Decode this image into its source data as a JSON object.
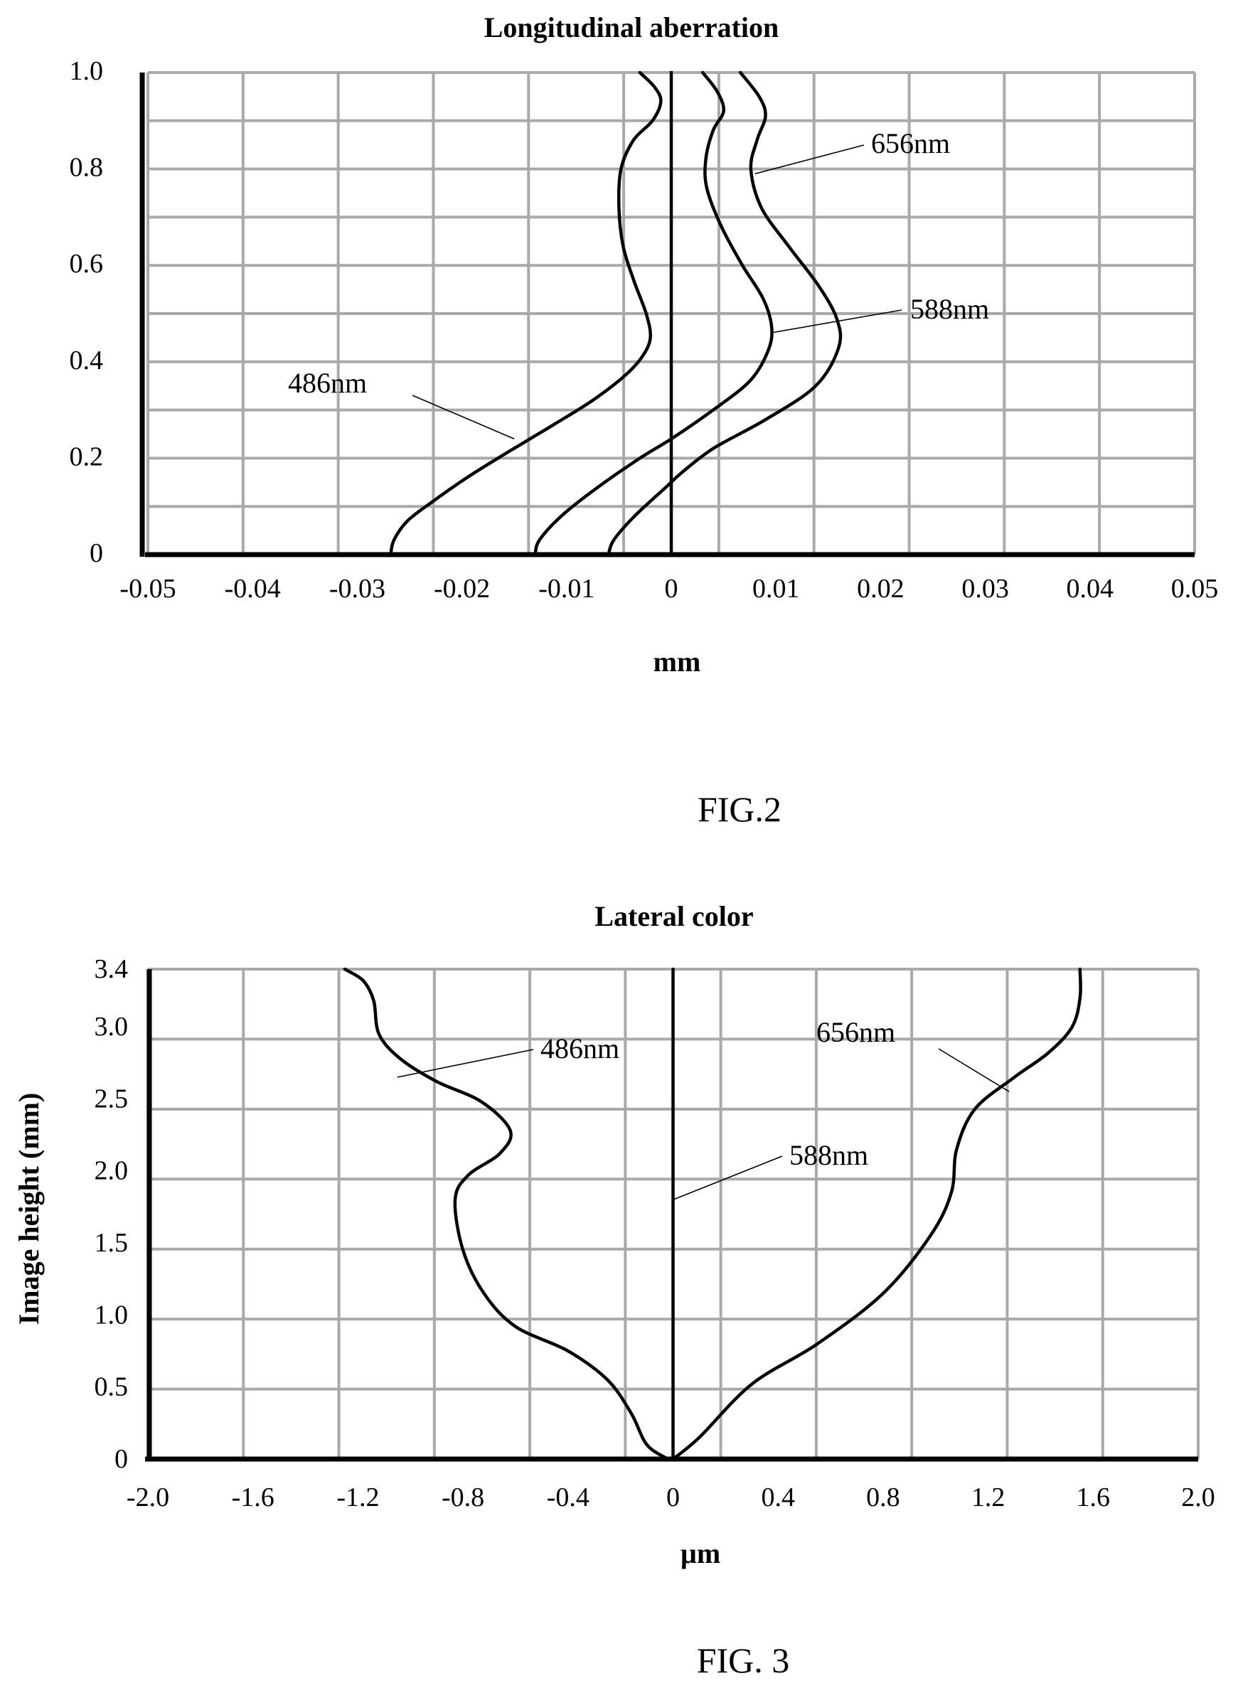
{
  "chart_data": [
    {
      "type": "line",
      "title": "Longitudinal aberration",
      "xlabel": "mm",
      "ylabel": "",
      "xlim": [
        -0.05,
        0.05
      ],
      "ylim": [
        0,
        1.0
      ],
      "x_ticks": [
        "-0.05",
        "-0.04",
        "-0.03",
        "-0.02",
        "-0.01",
        "0",
        "0.01",
        "0.02",
        "0.03",
        "0.04",
        "0.05"
      ],
      "y_ticks": [
        "0",
        "0.2",
        "0.4",
        "0.6",
        "0.8",
        "1.0"
      ],
      "grid": true,
      "caption": "FIG.2",
      "series": [
        {
          "name": "486nm",
          "points": [
            [
              -0.0268,
              0.0
            ],
            [
              -0.0265,
              0.03
            ],
            [
              -0.0252,
              0.07
            ],
            [
              -0.0228,
              0.11
            ],
            [
              -0.0195,
              0.16
            ],
            [
              -0.0158,
              0.21
            ],
            [
              -0.0112,
              0.27
            ],
            [
              -0.0075,
              0.32
            ],
            [
              -0.0045,
              0.37
            ],
            [
              -0.0028,
              0.41
            ],
            [
              -0.002,
              0.45
            ],
            [
              -0.0024,
              0.5
            ],
            [
              -0.0036,
              0.57
            ],
            [
              -0.0046,
              0.64
            ],
            [
              -0.005,
              0.72
            ],
            [
              -0.0048,
              0.8
            ],
            [
              -0.0036,
              0.86
            ],
            [
              -0.0018,
              0.9
            ],
            [
              -0.001,
              0.94
            ],
            [
              -0.0016,
              0.97
            ],
            [
              -0.003,
              1.0
            ]
          ]
        },
        {
          "name": "588nm",
          "points": [
            [
              -0.013,
              0.0
            ],
            [
              -0.0126,
              0.03
            ],
            [
              -0.0105,
              0.08
            ],
            [
              -0.007,
              0.14
            ],
            [
              -0.003,
              0.2
            ],
            [
              0.0,
              0.24
            ],
            [
              0.004,
              0.3
            ],
            [
              0.0075,
              0.36
            ],
            [
              0.0092,
              0.42
            ],
            [
              0.0096,
              0.47
            ],
            [
              0.0088,
              0.53
            ],
            [
              0.0068,
              0.6
            ],
            [
              0.0048,
              0.68
            ],
            [
              0.0034,
              0.76
            ],
            [
              0.0033,
              0.82
            ],
            [
              0.004,
              0.88
            ],
            [
              0.005,
              0.92
            ],
            [
              0.0044,
              0.96
            ],
            [
              0.003,
              1.0
            ]
          ]
        },
        {
          "name": "656nm",
          "points": [
            [
              -0.006,
              0.0
            ],
            [
              -0.0055,
              0.03
            ],
            [
              -0.0035,
              0.08
            ],
            [
              -0.0005,
              0.14
            ],
            [
              0.001,
              0.17
            ],
            [
              0.004,
              0.22
            ],
            [
              0.009,
              0.28
            ],
            [
              0.0138,
              0.35
            ],
            [
              0.016,
              0.43
            ],
            [
              0.0158,
              0.49
            ],
            [
              0.014,
              0.56
            ],
            [
              0.0112,
              0.64
            ],
            [
              0.0086,
              0.72
            ],
            [
              0.0076,
              0.8
            ],
            [
              0.0082,
              0.86
            ],
            [
              0.009,
              0.91
            ],
            [
              0.0084,
              0.95
            ],
            [
              0.0066,
              1.0
            ]
          ]
        }
      ],
      "annotations": [
        {
          "text": "656nm",
          "target": [
            0.008,
            0.79
          ]
        },
        {
          "text": "588nm",
          "target": [
            0.0095,
            0.46
          ]
        },
        {
          "text": "486nm",
          "target": [
            -0.015,
            0.24
          ]
        }
      ]
    },
    {
      "type": "line",
      "title": "Lateral color",
      "xlabel": "µm",
      "ylabel": "Image height (mm)",
      "xlim": [
        -2.0,
        2.0
      ],
      "ylim": [
        0,
        3.4
      ],
      "x_ticks": [
        "-2.0",
        "-1.6",
        "-1.2",
        "-0.8",
        "-0.4",
        "0",
        "0.4",
        "0.8",
        "1.2",
        "1.6",
        "2.0"
      ],
      "y_ticks": [
        "0",
        "0.5",
        "1.0",
        "1.5",
        "2.0",
        "2.5",
        "3.0",
        "3.4"
      ],
      "grid": true,
      "caption": "FIG. 3",
      "series": [
        {
          "name": "486nm",
          "points": [
            [
              -0.02,
              0.0
            ],
            [
              -0.1,
              0.1
            ],
            [
              -0.16,
              0.32
            ],
            [
              -0.25,
              0.55
            ],
            [
              -0.4,
              0.75
            ],
            [
              -0.6,
              0.92
            ],
            [
              -0.72,
              1.15
            ],
            [
              -0.8,
              1.45
            ],
            [
              -0.83,
              1.8
            ],
            [
              -0.78,
              1.97
            ],
            [
              -0.66,
              2.12
            ],
            [
              -0.62,
              2.28
            ],
            [
              -0.73,
              2.48
            ],
            [
              -0.9,
              2.62
            ],
            [
              -1.04,
              2.78
            ],
            [
              -1.12,
              2.95
            ],
            [
              -1.14,
              3.18
            ],
            [
              -1.18,
              3.32
            ],
            [
              -1.25,
              3.4
            ]
          ]
        },
        {
          "name": "588nm",
          "points": [
            [
              0.0,
              0.0
            ],
            [
              0.0,
              3.4
            ]
          ]
        },
        {
          "name": "656nm",
          "points": [
            [
              0.0,
              0.0
            ],
            [
              0.1,
              0.15
            ],
            [
              0.3,
              0.52
            ],
            [
              0.55,
              0.8
            ],
            [
              0.8,
              1.15
            ],
            [
              0.98,
              1.55
            ],
            [
              1.06,
              1.85
            ],
            [
              1.08,
              2.15
            ],
            [
              1.15,
              2.43
            ],
            [
              1.3,
              2.65
            ],
            [
              1.43,
              2.82
            ],
            [
              1.52,
              3.0
            ],
            [
              1.55,
              3.2
            ],
            [
              1.55,
              3.4
            ]
          ]
        }
      ],
      "annotations": [
        {
          "text": "486nm",
          "target": [
            -1.05,
            2.65
          ]
        },
        {
          "text": "656nm",
          "target": [
            1.28,
            2.55
          ]
        },
        {
          "text": "588nm",
          "target": [
            0.0,
            1.8
          ]
        }
      ]
    }
  ]
}
